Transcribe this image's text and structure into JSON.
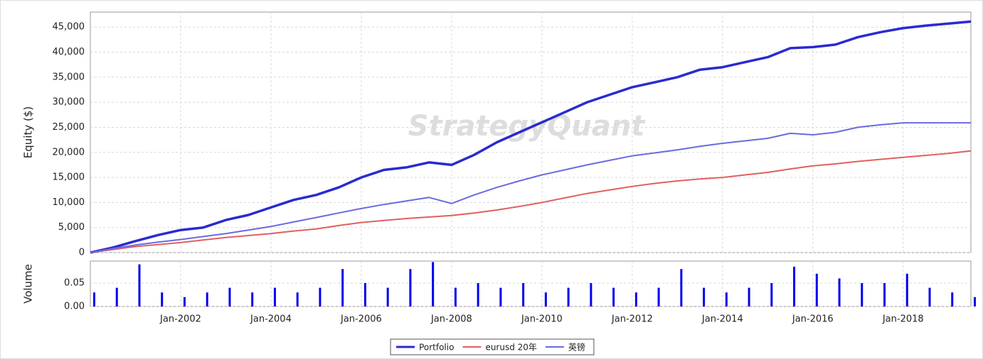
{
  "chart_data": [
    {
      "type": "line",
      "ylabel": "Equity ($)",
      "watermark": "StrategyQuant",
      "grid": true,
      "legend": "bottom",
      "x": [
        "2000-01",
        "2000-07",
        "2001-01",
        "2001-07",
        "2002-01",
        "2002-07",
        "2003-01",
        "2003-07",
        "2004-01",
        "2004-07",
        "2005-01",
        "2005-07",
        "2006-01",
        "2006-07",
        "2007-01",
        "2007-07",
        "2008-01",
        "2008-07",
        "2009-01",
        "2009-07",
        "2010-01",
        "2010-07",
        "2011-01",
        "2011-07",
        "2012-01",
        "2012-07",
        "2013-01",
        "2013-07",
        "2014-01",
        "2014-07",
        "2015-01",
        "2015-07",
        "2016-01",
        "2016-07",
        "2017-01",
        "2017-07",
        "2018-01",
        "2018-07",
        "2019-01",
        "2019-07"
      ],
      "xlim": [
        "2000-01",
        "2019-07"
      ],
      "ylim": [
        0,
        48000
      ],
      "yticks": [
        0,
        {
          "value": 5000,
          "label": "5,000"
        },
        {
          "value": 10000,
          "label": "10,000"
        },
        {
          "value": 15000,
          "label": "15,000"
        },
        {
          "value": 20000,
          "label": "20,000"
        },
        {
          "value": 25000,
          "label": "25,000"
        },
        {
          "value": 30000,
          "label": "30,000"
        },
        {
          "value": 35000,
          "label": "35,000"
        },
        {
          "value": 40000,
          "label": "40,000"
        },
        {
          "value": 45000,
          "label": "45,000"
        }
      ],
      "series": [
        {
          "name": "Portfolio",
          "color": "#2a2ad0",
          "width": 3.5,
          "values": [
            0,
            1000,
            2300,
            3500,
            4500,
            5000,
            6500,
            7500,
            9000,
            10500,
            11500,
            13000,
            15000,
            16500,
            17000,
            18000,
            17500,
            19500,
            22000,
            24000,
            26000,
            28000,
            30000,
            31500,
            33000,
            34000,
            35000,
            36500,
            37000,
            38000,
            39000,
            40800,
            41000,
            41500,
            43000,
            44000,
            44800,
            45300,
            45700,
            46100
          ]
        },
        {
          "name": "eurusd 20年",
          "color": "#e06060",
          "width": 2,
          "values": [
            0,
            600,
            1200,
            1600,
            2000,
            2500,
            3000,
            3400,
            3800,
            4300,
            4700,
            5400,
            6000,
            6400,
            6800,
            7100,
            7400,
            7900,
            8500,
            9200,
            10000,
            10900,
            11800,
            12500,
            13200,
            13800,
            14300,
            14700,
            15000,
            15500,
            16000,
            16700,
            17300,
            17700,
            18200,
            18600,
            19000,
            19400,
            19800,
            20300
          ]
        },
        {
          "name": "英镑",
          "color": "#6a6ae0",
          "width": 2,
          "values": [
            0,
            800,
            1500,
            2100,
            2600,
            3200,
            3800,
            4500,
            5200,
            6100,
            7000,
            7900,
            8800,
            9600,
            10300,
            11000,
            9800,
            11500,
            13000,
            14300,
            15500,
            16500,
            17500,
            18400,
            19300,
            19900,
            20500,
            21200,
            21800,
            22300,
            22800,
            23800,
            23500,
            24000,
            25000,
            25500,
            25900,
            25900,
            25900,
            25900
          ]
        }
      ]
    },
    {
      "type": "bar",
      "ylabel": "Volume",
      "color": "#0000ee",
      "x": [
        "2000-01",
        "2000-07",
        "2001-01",
        "2001-07",
        "2002-01",
        "2002-07",
        "2003-01",
        "2003-07",
        "2004-01",
        "2004-07",
        "2005-01",
        "2005-07",
        "2006-01",
        "2006-07",
        "2007-01",
        "2007-07",
        "2008-01",
        "2008-07",
        "2009-01",
        "2009-07",
        "2010-01",
        "2010-07",
        "2011-01",
        "2011-07",
        "2012-01",
        "2012-07",
        "2013-01",
        "2013-07",
        "2014-01",
        "2014-07",
        "2015-01",
        "2015-07",
        "2016-01",
        "2016-07",
        "2017-01",
        "2017-07",
        "2018-01",
        "2018-07",
        "2019-01",
        "2019-07"
      ],
      "values": [
        0.03,
        0.04,
        0.09,
        0.03,
        0.02,
        0.03,
        0.04,
        0.03,
        0.04,
        0.03,
        0.04,
        0.08,
        0.05,
        0.04,
        0.08,
        0.095,
        0.04,
        0.05,
        0.04,
        0.05,
        0.03,
        0.04,
        0.05,
        0.04,
        0.03,
        0.04,
        0.08,
        0.04,
        0.03,
        0.04,
        0.05,
        0.085,
        0.07,
        0.06,
        0.05,
        0.05,
        0.07,
        0.04,
        0.03,
        0.02
      ],
      "xlim": [
        "2000-01",
        "2019-07"
      ],
      "ylim": [
        0,
        0.097
      ],
      "yticks": [
        {
          "value": 0,
          "label": "0.00"
        },
        {
          "value": 0.05,
          "label": "0.05"
        }
      ],
      "xticks": [
        {
          "value": "2002-01",
          "label": "Jan-2002"
        },
        {
          "value": "2004-01",
          "label": "Jan-2004"
        },
        {
          "value": "2006-01",
          "label": "Jan-2006"
        },
        {
          "value": "2008-01",
          "label": "Jan-2008"
        },
        {
          "value": "2010-01",
          "label": "Jan-2010"
        },
        {
          "value": "2012-01",
          "label": "Jan-2012"
        },
        {
          "value": "2014-01",
          "label": "Jan-2014"
        },
        {
          "value": "2016-01",
          "label": "Jan-2016"
        },
        {
          "value": "2018-01",
          "label": "Jan-2018"
        }
      ]
    }
  ]
}
